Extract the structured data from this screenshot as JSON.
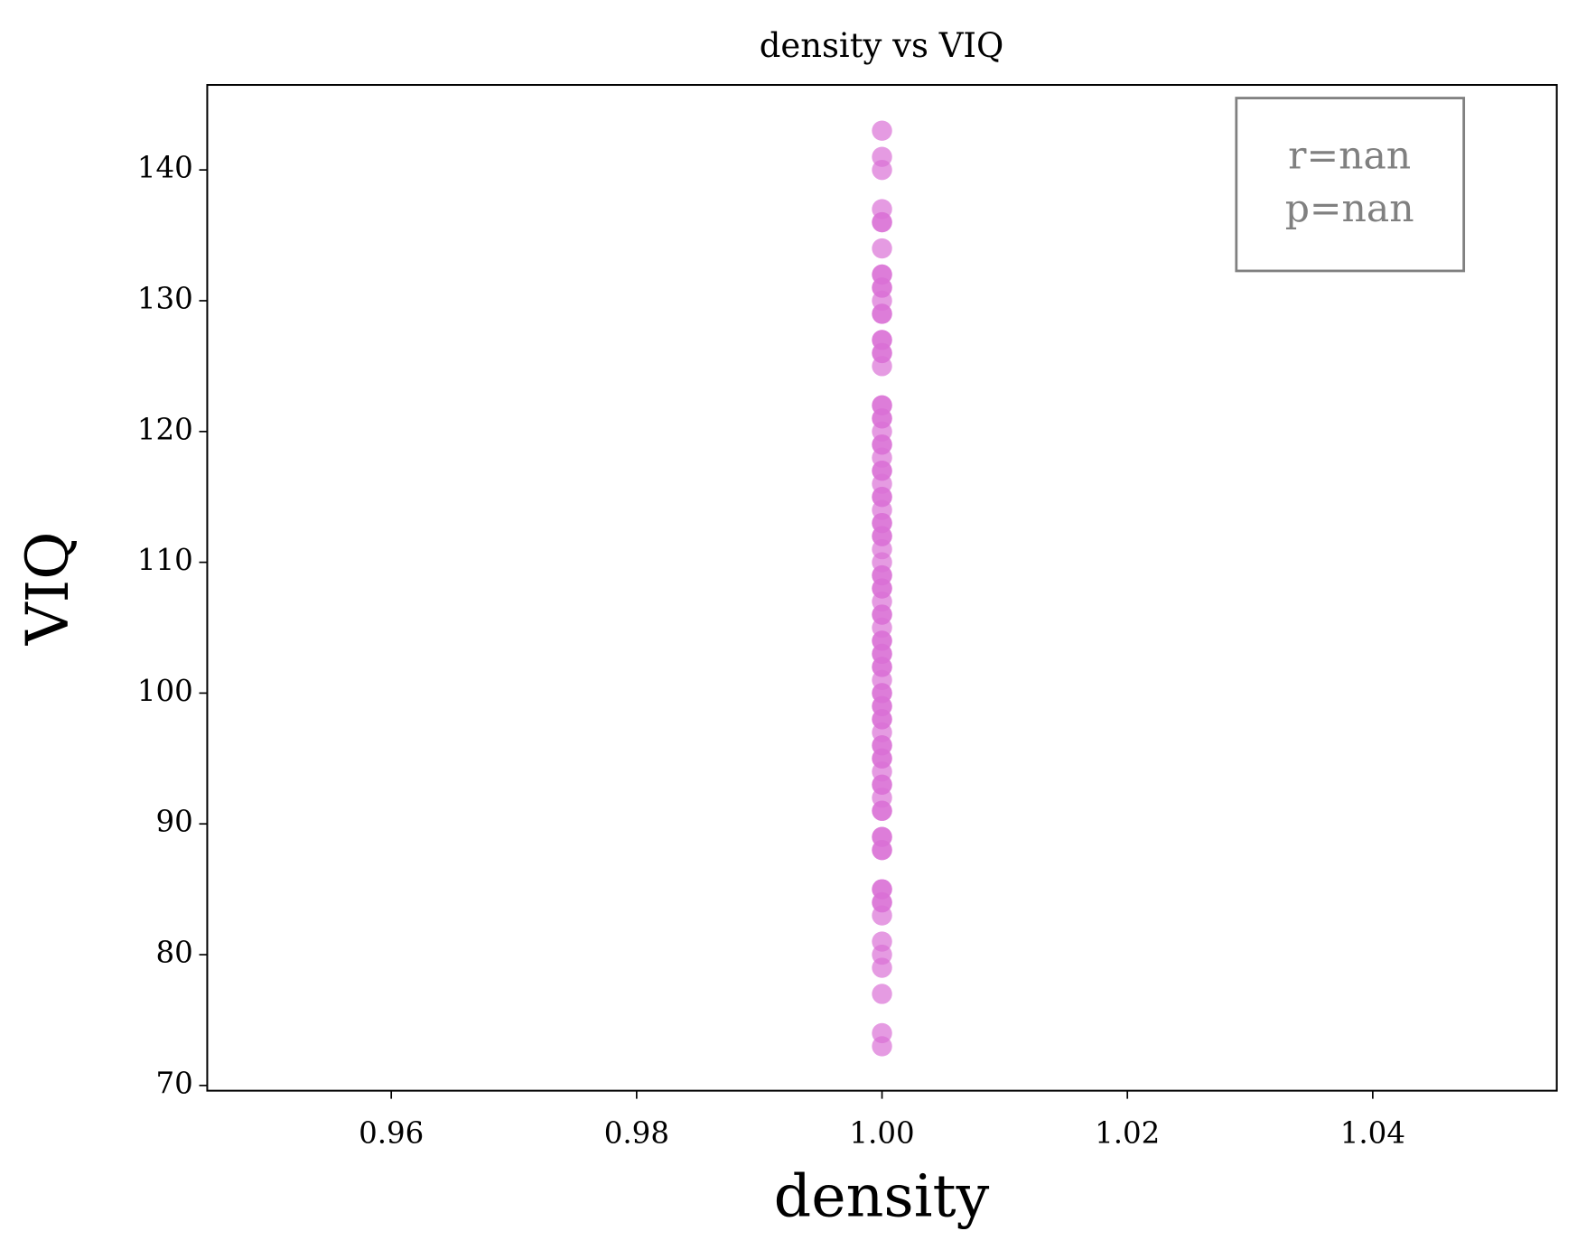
{
  "chart_data": {
    "type": "scatter",
    "title": "density vs VIQ",
    "x_label": "density",
    "y_label": "VIQ",
    "series": [
      {
        "name": "VIQ",
        "color": "#da70d6",
        "x": [
          1,
          1,
          1,
          1,
          1,
          1,
          1,
          1,
          1,
          1,
          1,
          1,
          1,
          1,
          1,
          1,
          1,
          1,
          1,
          1,
          1,
          1,
          1,
          1,
          1,
          1,
          1,
          1,
          1,
          1,
          1,
          1,
          1,
          1,
          1,
          1,
          1,
          1,
          1,
          1,
          1,
          1,
          1,
          1,
          1,
          1,
          1,
          1,
          1,
          1,
          1,
          1,
          1,
          1,
          1,
          1,
          1,
          1,
          1,
          1,
          1,
          1,
          1,
          1,
          1,
          1,
          1,
          1,
          1,
          1,
          1,
          1,
          1,
          1,
          1,
          1,
          1,
          1,
          1,
          1,
          1,
          1,
          1,
          1,
          1,
          1
        ],
        "values": [
          143,
          141,
          140,
          137,
          136,
          136,
          134,
          132,
          132,
          131,
          131,
          130,
          129,
          129,
          127,
          127,
          126,
          126,
          125,
          122,
          122,
          121,
          121,
          120,
          119,
          119,
          118,
          117,
          117,
          116,
          115,
          115,
          114,
          113,
          113,
          112,
          112,
          111,
          110,
          109,
          109,
          108,
          108,
          107,
          106,
          106,
          105,
          104,
          104,
          103,
          103,
          102,
          102,
          101,
          100,
          100,
          99,
          99,
          98,
          98,
          97,
          96,
          96,
          95,
          95,
          94,
          93,
          93,
          92,
          91,
          91,
          89,
          89,
          88,
          88,
          85,
          85,
          84,
          84,
          83,
          81,
          80,
          79,
          77,
          74,
          73
        ]
      }
    ],
    "xlim": [
      0.945,
      1.055
    ],
    "ylim": [
      69.6,
      146.5
    ],
    "xticks": [
      0.96,
      0.98,
      {
        "value": 1,
        "label": "1.00"
      },
      1.02,
      1.04
    ],
    "yticks": [
      70,
      80,
      90,
      100,
      110,
      120,
      130,
      140
    ],
    "annotation": [
      "r=nan",
      "p=nan"
    ]
  }
}
